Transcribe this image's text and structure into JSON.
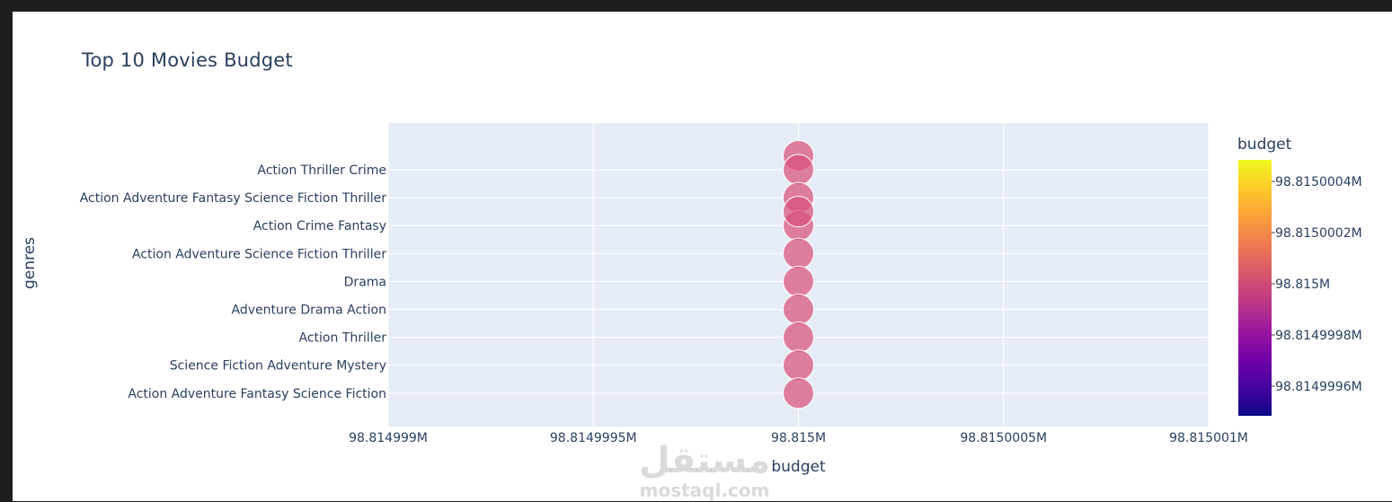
{
  "chart_data": {
    "type": "scatter",
    "title": "Top 10 Movies Budget",
    "xlabel": "budget",
    "ylabel": "genres",
    "xlim": [
      98.814999,
      98.815001
    ],
    "x_unit_suffix": "M",
    "x_ticks": [
      "98.814999M",
      "98.8149995M",
      "98.815M",
      "98.8150005M",
      "98.815001M"
    ],
    "y_categories": [
      "Action Thriller Crime",
      "Action Adventure Fantasy Science Fiction Thriller",
      "Action Crime Fantasy",
      "Action Adventure Science Fiction Thriller",
      "Drama",
      "Adventure Drama Action",
      "Action Thriller",
      "Science Fiction Adventure Mystery",
      "Action Adventure Fantasy Science Fiction"
    ],
    "points": [
      {
        "genre": "Action Thriller Crime",
        "x": 98.815,
        "offset": -0.5
      },
      {
        "genre": "Action Thriller Crime",
        "x": 98.815,
        "offset": 0
      },
      {
        "genre": "Action Adventure Fantasy Science Fiction Thriller",
        "x": 98.815,
        "offset": 0
      },
      {
        "genre": "Action Crime Fantasy",
        "x": 98.815,
        "offset": 0
      },
      {
        "genre": "Action Crime Fantasy",
        "x": 98.815,
        "offset": -0.5
      },
      {
        "genre": "Action Adventure Science Fiction Thriller",
        "x": 98.815,
        "offset": 0
      },
      {
        "genre": "Drama",
        "x": 98.815,
        "offset": 0
      },
      {
        "genre": "Adventure Drama Action",
        "x": 98.815,
        "offset": 0
      },
      {
        "genre": "Action Thriller",
        "x": 98.815,
        "offset": 0
      },
      {
        "genre": "Science Fiction Adventure Mystery",
        "x": 98.815,
        "offset": 0
      },
      {
        "genre": "Action Adventure Fantasy Science Fiction",
        "x": 98.815,
        "offset": 0
      }
    ],
    "colorbar": {
      "title": "budget",
      "ticks": [
        "98.8150004M",
        "98.8150002M",
        "98.815M",
        "98.8149998M",
        "98.8149996M"
      ],
      "colors": [
        "#0d0887",
        "#46039f",
        "#7201a8",
        "#9c179e",
        "#bd3786",
        "#d8576b",
        "#ed7953",
        "#fb9f3a",
        "#fdca26",
        "#f0f921"
      ]
    },
    "marker_color": "#d8507c",
    "plot_bg": "#e5ecf6",
    "grid": true
  },
  "watermark": {
    "arabic": "مستقل",
    "latin": "mostaql.com"
  }
}
